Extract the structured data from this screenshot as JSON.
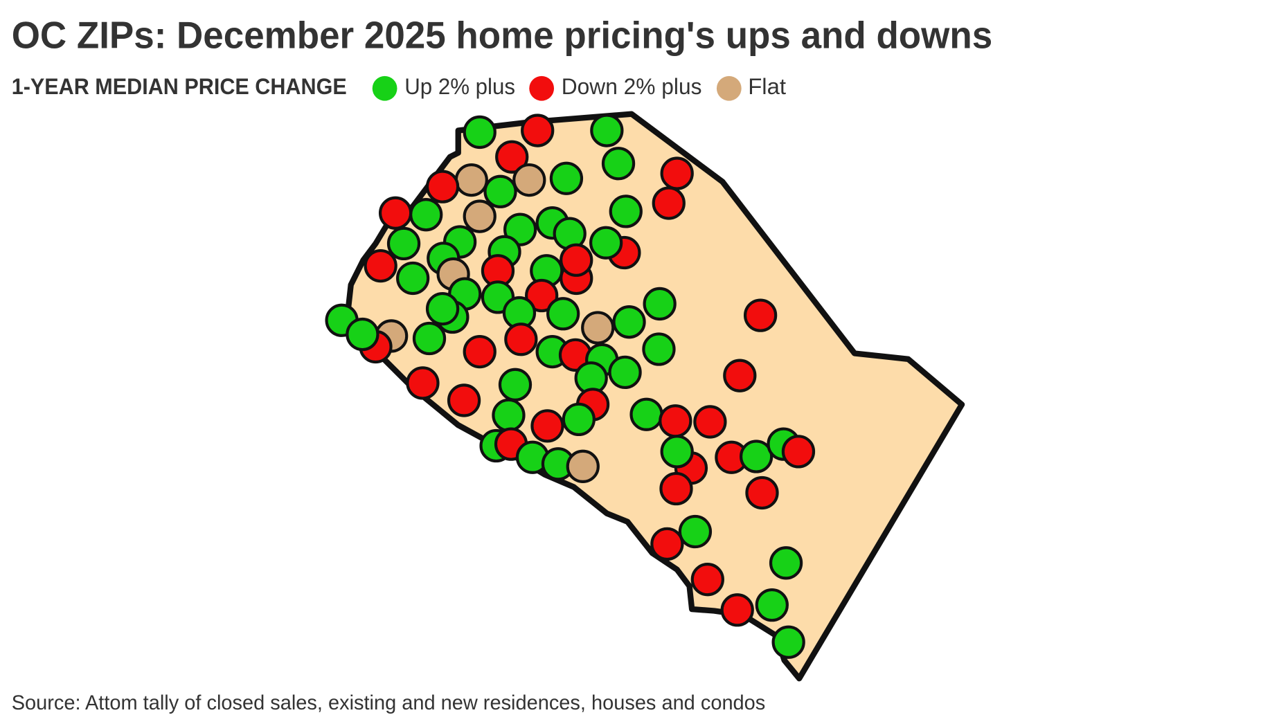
{
  "header": {
    "title": "OC ZIPs: December 2025 home pricing's ups and downs",
    "legend_title": "1-YEAR MEDIAN PRICE CHANGE"
  },
  "legend": [
    {
      "name": "Up 2% plus",
      "color": "#17d117"
    },
    {
      "name": "Down 2% plus",
      "color": "#f20d0d"
    },
    {
      "name": "Flat",
      "color": "#d4a97a"
    }
  ],
  "map": {
    "fill": "#fddcaa"
  },
  "source": "Source: Attom tally of closed sales, existing and new residences, houses and condos"
}
